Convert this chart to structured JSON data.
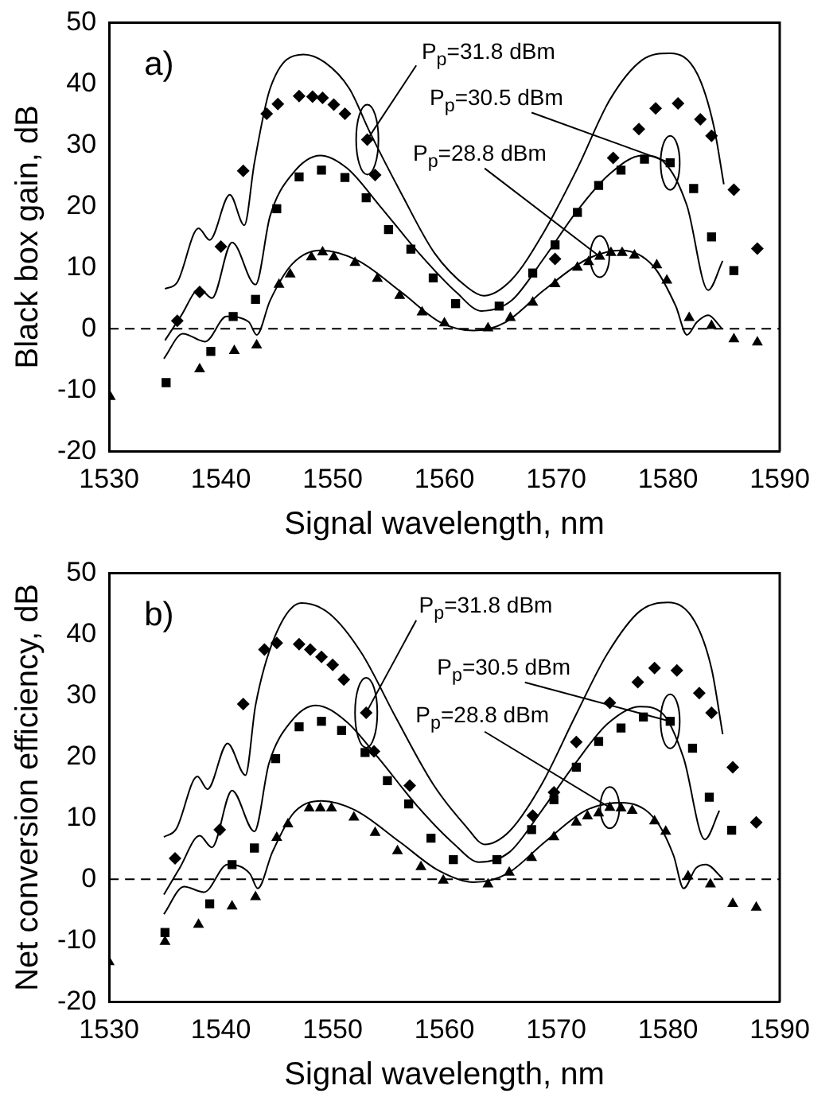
{
  "chart_data": [
    {
      "type": "scatter",
      "xlabel": "Signal wavelength, nm",
      "ylabel": "Black box gain, dB",
      "xlim": [
        1530,
        1590
      ],
      "ylim": [
        -20,
        50
      ],
      "xticks": [
        1530,
        1540,
        1550,
        1560,
        1570,
        1580,
        1590
      ],
      "yticks": [
        -20,
        -10,
        0,
        10,
        20,
        30,
        40,
        50
      ],
      "ref_lines": [
        {
          "axis": "y",
          "value": 0,
          "line_style": "dashed",
          "color": "#000000"
        }
      ],
      "annotations": [
        "a)",
        {
          "text": "P$_{p}$=31.8 dBm",
          "x": 1553.1,
          "y": 30.9
        },
        {
          "text": "P$_{p}$=30.5 dBm",
          "x": 1580.2,
          "y": 27.1
        },
        {
          "text": "P$_{p}$=28.8 dBm",
          "x": 1573.9,
          "y": 11.8
        }
      ],
      "series": [
        {
          "type": "scatter",
          "marker": "diamond",
          "color": "#000000",
          "x": [
            1536.1,
            1538.1,
            1540.0,
            1542.0,
            1544.1,
            1545.1,
            1547.0,
            1548.2,
            1549.1,
            1550.1,
            1551.1,
            1553.1,
            1553.8,
            1569.9,
            1575.1,
            1577.4,
            1578.9,
            1580.9,
            1582.9,
            1583.9,
            1585.9,
            1588.0
          ],
          "values": [
            1.3,
            6.0,
            13.4,
            25.8,
            35.1,
            36.7,
            38.0,
            37.9,
            37.7,
            36.6,
            35.1,
            30.9,
            25.1,
            11.4,
            27.9,
            32.6,
            36.0,
            36.8,
            34.2,
            31.5,
            22.7,
            13.1
          ]
        },
        {
          "type": "scatter",
          "marker": "square",
          "color": "#000000",
          "x": [
            1535.1,
            1539.1,
            1541.1,
            1543.1,
            1545.0,
            1547.0,
            1549.0,
            1551.1,
            1553.0,
            1555.0,
            1557.0,
            1559.0,
            1561.0,
            1564.9,
            1567.9,
            1569.9,
            1571.9,
            1573.8,
            1575.8,
            1577.9,
            1580.2,
            1582.3,
            1583.9,
            1585.9
          ],
          "values": [
            -8.8,
            -3.7,
            2.0,
            4.8,
            19.6,
            24.8,
            25.9,
            24.7,
            21.4,
            16.2,
            13.0,
            8.3,
            4.1,
            3.7,
            9.1,
            13.7,
            19.0,
            23.4,
            25.9,
            27.7,
            27.1,
            22.9,
            15.0,
            9.5
          ]
        },
        {
          "type": "scatter",
          "marker": "triangle",
          "color": "#000000",
          "x": [
            1530.1,
            1538.1,
            1541.2,
            1543.2,
            1545.2,
            1546.2,
            1548.1,
            1549.1,
            1550.1,
            1552.0,
            1554.0,
            1556.0,
            1558.0,
            1560.0,
            1563.9,
            1565.9,
            1567.9,
            1569.9,
            1571.9,
            1572.9,
            1573.9,
            1574.9,
            1575.9,
            1577.0,
            1579.0,
            1579.9,
            1581.9,
            1583.9,
            1585.9,
            1588.0
          ],
          "values": [
            -11.1,
            -6.6,
            -3.6,
            -2.7,
            7.2,
            8.9,
            11.7,
            12.5,
            11.7,
            10.8,
            8.2,
            5.4,
            2.7,
            0.9,
            0.1,
            1.8,
            4.3,
            7.3,
            10.0,
            10.9,
            11.8,
            12.4,
            12.4,
            12.0,
            10.4,
            7.9,
            1.8,
            0.5,
            -1.7,
            -2.2
          ]
        },
        {
          "type": "line",
          "marker": "none",
          "color": "#000000",
          "x": [
            1535.0,
            1536.1,
            1538.0,
            1539.0,
            1540.8,
            1542.1,
            1543.0,
            1544.4,
            1547.4,
            1549.3,
            1551.5,
            1553.3,
            1556.2,
            1559.1,
            1562.1,
            1563.5,
            1566.0,
            1568.9,
            1571.9,
            1574.8,
            1577.7,
            1580.2,
            1582.6,
            1584.1,
            1585.0
          ],
          "values": [
            6.5,
            7.6,
            16.4,
            14.5,
            21.9,
            16.9,
            27.1,
            39.2,
            44.8,
            43.5,
            39.2,
            32.2,
            21.9,
            12.4,
            6.7,
            5.4,
            8.0,
            15.8,
            26.2,
            37.4,
            43.9,
            45.0,
            41.7,
            33.1,
            23.6
          ]
        },
        {
          "type": "line",
          "marker": "none",
          "color": "#000000",
          "x": [
            1535.0,
            1536.4,
            1538.1,
            1539.2,
            1541.0,
            1543.1,
            1544.4,
            1546.4,
            1548.9,
            1551.3,
            1554.2,
            1557.7,
            1561.1,
            1563.3,
            1566.0,
            1568.9,
            1571.9,
            1574.8,
            1577.7,
            1579.7,
            1581.7,
            1583.6,
            1584.9
          ],
          "values": [
            -1.9,
            2.0,
            6.5,
            5.0,
            14.1,
            7.2,
            18.4,
            25.3,
            28.3,
            26.2,
            20.1,
            12.4,
            5.9,
            2.9,
            4.6,
            11.5,
            19.3,
            25.3,
            28.3,
            27.1,
            20.1,
            6.3,
            11.1
          ]
        },
        {
          "type": "line",
          "marker": "none",
          "color": "#000000",
          "x": [
            1534.9,
            1536.6,
            1538.6,
            1540.5,
            1542.5,
            1543.2,
            1544.4,
            1546.4,
            1548.9,
            1552.3,
            1556.2,
            1559.6,
            1562.6,
            1565.5,
            1568.9,
            1572.9,
            1575.8,
            1578.7,
            1580.7,
            1581.7,
            1582.6,
            1583.6,
            1584.8
          ],
          "values": [
            -4.9,
            -0.8,
            -2.1,
            2.0,
            1.1,
            -1.0,
            4.6,
            10.6,
            12.8,
            11.1,
            5.9,
            1.1,
            -0.3,
            1.1,
            6.3,
            11.5,
            12.8,
            10.2,
            3.7,
            -1.0,
            1.1,
            2.2,
            0.1
          ]
        }
      ]
    },
    {
      "type": "scatter",
      "xlabel": "Signal wavelength, nm",
      "ylabel": "Net conversion efficiency, dB",
      "xlim": [
        1530,
        1590
      ],
      "ylim": [
        -20,
        50
      ],
      "xticks": [
        1530,
        1540,
        1550,
        1560,
        1570,
        1580,
        1590
      ],
      "yticks": [
        -20,
        -10,
        0,
        10,
        20,
        30,
        40,
        50
      ],
      "ref_lines": [
        {
          "axis": "y",
          "value": 0,
          "line_style": "dashed",
          "color": "#000000"
        }
      ],
      "annotations": [
        "b)",
        {
          "text": "P$_{p}$=31.8 dBm",
          "x": 1553.0,
          "y": 27.2
        },
        {
          "text": "P$_{p}$=30.5 dBm",
          "x": 1580.2,
          "y": 25.8
        },
        {
          "text": "P$_{p}$=28.8 dBm",
          "x": 1574.8,
          "y": 11.7
        }
      ],
      "series": [
        {
          "type": "scatter",
          "marker": "diamond",
          "color": "#000000",
          "x": [
            1535.9,
            1539.9,
            1542.0,
            1543.9,
            1545.0,
            1547.0,
            1548.0,
            1549.0,
            1550.0,
            1551.0,
            1553.0,
            1553.7,
            1556.9,
            1567.9,
            1569.8,
            1571.8,
            1574.8,
            1577.3,
            1578.8,
            1580.8,
            1582.8,
            1583.9,
            1585.8,
            1587.9
          ],
          "values": [
            3.4,
            8.1,
            28.6,
            37.5,
            38.6,
            38.4,
            37.5,
            36.3,
            35.0,
            32.6,
            27.2,
            20.9,
            15.3,
            10.4,
            14.2,
            22.4,
            28.8,
            32.2,
            34.5,
            34.1,
            30.4,
            27.2,
            18.3,
            9.3
          ]
        },
        {
          "type": "scatter",
          "marker": "square",
          "color": "#000000",
          "x": [
            1535.0,
            1539.0,
            1541.0,
            1543.0,
            1544.9,
            1547.0,
            1549.0,
            1550.8,
            1552.9,
            1554.9,
            1556.8,
            1558.8,
            1560.8,
            1564.7,
            1567.8,
            1569.8,
            1571.8,
            1573.8,
            1575.8,
            1577.8,
            1580.2,
            1582.2,
            1583.7,
            1585.7
          ],
          "values": [
            -8.7,
            -4.0,
            2.4,
            5.1,
            19.7,
            24.9,
            25.8,
            24.3,
            20.7,
            16.1,
            12.3,
            6.7,
            3.2,
            3.2,
            8.1,
            13.0,
            18.3,
            22.5,
            24.7,
            26.5,
            25.8,
            21.4,
            13.4,
            8.0
          ]
        },
        {
          "type": "scatter",
          "marker": "triangle",
          "color": "#000000",
          "x": [
            1530.0,
            1535.0,
            1538.0,
            1541.0,
            1543.1,
            1545.0,
            1546.0,
            1547.9,
            1548.9,
            1549.9,
            1551.9,
            1553.8,
            1555.8,
            1557.9,
            1559.9,
            1563.9,
            1565.8,
            1567.8,
            1569.8,
            1571.8,
            1572.8,
            1573.8,
            1574.8,
            1575.8,
            1576.8,
            1578.8,
            1579.8,
            1581.8,
            1583.8,
            1585.8,
            1587.9
          ],
          "values": [
            -13.5,
            -10.2,
            -7.4,
            -4.4,
            -2.9,
            6.8,
            9.0,
            11.6,
            11.6,
            11.6,
            10.1,
            7.6,
            4.6,
            2.0,
            -0.2,
            -0.8,
            1.1,
            3.5,
            6.9,
            9.3,
            10.3,
            10.8,
            11.7,
            11.6,
            11.2,
            9.5,
            7.8,
            0.5,
            -0.8,
            -4.0,
            -4.6
          ]
        },
        {
          "type": "line",
          "marker": "none",
          "color": "#000000",
          "x": [
            1534.9,
            1536.0,
            1537.9,
            1538.8,
            1540.6,
            1542.2,
            1543.1,
            1544.8,
            1547.2,
            1549.7,
            1552.6,
            1555.6,
            1559.0,
            1561.9,
            1563.6,
            1565.8,
            1568.7,
            1571.7,
            1574.6,
            1577.5,
            1580.0,
            1582.4,
            1583.9,
            1584.9
          ],
          "values": [
            6.9,
            8.2,
            16.8,
            14.7,
            22.2,
            17.0,
            28.4,
            39.5,
            45.1,
            43.4,
            36.9,
            26.6,
            15.5,
            8.7,
            5.7,
            7.8,
            15.5,
            26.6,
            36.9,
            43.8,
            45.2,
            42.1,
            34.4,
            23.7
          ]
        },
        {
          "type": "line",
          "marker": "none",
          "color": "#000000",
          "x": [
            1534.9,
            1536.3,
            1538.1,
            1539.2,
            1541.0,
            1543.0,
            1544.3,
            1546.3,
            1548.5,
            1551.2,
            1554.1,
            1557.5,
            1560.9,
            1563.1,
            1565.8,
            1568.7,
            1571.7,
            1574.6,
            1577.5,
            1579.5,
            1581.4,
            1583.3,
            1584.6
          ],
          "values": [
            -2.5,
            1.8,
            7.1,
            5.2,
            14.5,
            7.8,
            18.9,
            25.8,
            28.4,
            25.8,
            19.8,
            12.1,
            5.7,
            2.8,
            4.4,
            11.2,
            18.9,
            25.4,
            28.2,
            27.1,
            19.8,
            6.5,
            11.2
          ]
        },
        {
          "type": "line",
          "marker": "none",
          "color": "#000000",
          "x": [
            1534.9,
            1536.7,
            1538.5,
            1540.6,
            1542.6,
            1543.3,
            1544.6,
            1546.5,
            1549.0,
            1552.1,
            1556.0,
            1559.5,
            1562.6,
            1565.6,
            1569.0,
            1572.6,
            1575.8,
            1578.8,
            1580.5,
            1581.4,
            1582.5,
            1583.4,
            1584.9
          ],
          "values": [
            -5.7,
            -1.2,
            -2.1,
            2.4,
            0.9,
            -1.5,
            4.4,
            10.8,
            12.8,
            11.2,
            6.1,
            1.4,
            -0.5,
            0.9,
            6.1,
            11.2,
            12.5,
            9.9,
            3.9,
            -1.5,
            1.8,
            2.4,
            0.1
          ]
        }
      ]
    }
  ]
}
